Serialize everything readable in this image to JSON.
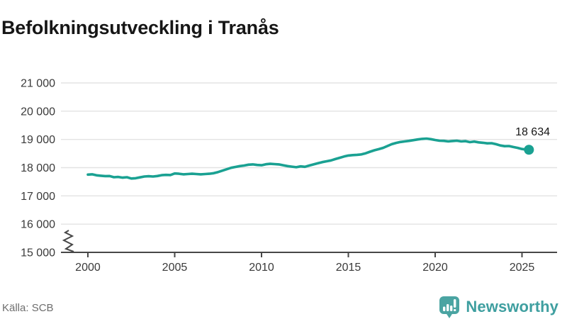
{
  "title": "Befolkningsutveckling i Tranås",
  "source": "Källa: SCB",
  "brand": {
    "name": "Newsworthy",
    "icon": "newsworthy-bubble-barchart-icon",
    "color": "#4aa4a2"
  },
  "chart_data": {
    "type": "line",
    "title": "Befolkningsutveckling i Tranås",
    "xlabel": "",
    "ylabel": "",
    "grid": "horizontal",
    "legend_position": "none",
    "axis_break_bottom_left": true,
    "xlim": [
      1998.45,
      2027.02
    ],
    "ylim": [
      15000,
      21000
    ],
    "x_ticks": [
      {
        "value": 2000,
        "label": "2000"
      },
      {
        "value": 2005,
        "label": "2005"
      },
      {
        "value": 2010,
        "label": "2010"
      },
      {
        "value": 2015,
        "label": "2015"
      },
      {
        "value": 2020,
        "label": "2020"
      },
      {
        "value": 2025,
        "label": "2025"
      }
    ],
    "y_ticks": [
      {
        "value": 15000,
        "label": "15 000"
      },
      {
        "value": 16000,
        "label": "16 000"
      },
      {
        "value": 17000,
        "label": "17 000"
      },
      {
        "value": 18000,
        "label": "18 000"
      },
      {
        "value": 19000,
        "label": "19 000"
      },
      {
        "value": 20000,
        "label": "20 000"
      },
      {
        "value": 21000,
        "label": "21 000"
      }
    ],
    "end_label": "18 634",
    "end_point": {
      "x": 2025.4,
      "y": 18634
    },
    "series": [
      {
        "name": "Befolkning i Tranås",
        "color": "#1aa192",
        "points": [
          [
            2000.0,
            17755
          ],
          [
            2000.25,
            17765
          ],
          [
            2000.5,
            17730
          ],
          [
            2000.75,
            17715
          ],
          [
            2001.0,
            17700
          ],
          [
            2001.25,
            17705
          ],
          [
            2001.5,
            17660
          ],
          [
            2001.75,
            17670
          ],
          [
            2002.0,
            17645
          ],
          [
            2002.25,
            17660
          ],
          [
            2002.5,
            17615
          ],
          [
            2002.75,
            17625
          ],
          [
            2003.0,
            17655
          ],
          [
            2003.25,
            17685
          ],
          [
            2003.5,
            17695
          ],
          [
            2003.75,
            17685
          ],
          [
            2004.0,
            17705
          ],
          [
            2004.25,
            17735
          ],
          [
            2004.5,
            17745
          ],
          [
            2004.75,
            17740
          ],
          [
            2005.0,
            17795
          ],
          [
            2005.25,
            17785
          ],
          [
            2005.5,
            17765
          ],
          [
            2005.75,
            17775
          ],
          [
            2006.0,
            17785
          ],
          [
            2006.25,
            17775
          ],
          [
            2006.5,
            17765
          ],
          [
            2006.75,
            17775
          ],
          [
            2007.0,
            17785
          ],
          [
            2007.25,
            17805
          ],
          [
            2007.5,
            17845
          ],
          [
            2007.75,
            17895
          ],
          [
            2008.0,
            17945
          ],
          [
            2008.25,
            17995
          ],
          [
            2008.5,
            18025
          ],
          [
            2008.75,
            18055
          ],
          [
            2009.0,
            18075
          ],
          [
            2009.25,
            18105
          ],
          [
            2009.5,
            18115
          ],
          [
            2009.75,
            18095
          ],
          [
            2010.0,
            18085
          ],
          [
            2010.25,
            18120
          ],
          [
            2010.5,
            18135
          ],
          [
            2010.75,
            18125
          ],
          [
            2011.0,
            18115
          ],
          [
            2011.25,
            18085
          ],
          [
            2011.5,
            18055
          ],
          [
            2011.75,
            18035
          ],
          [
            2012.0,
            18015
          ],
          [
            2012.25,
            18045
          ],
          [
            2012.5,
            18030
          ],
          [
            2012.75,
            18075
          ],
          [
            2013.0,
            18115
          ],
          [
            2013.25,
            18155
          ],
          [
            2013.5,
            18195
          ],
          [
            2013.75,
            18225
          ],
          [
            2014.0,
            18255
          ],
          [
            2014.25,
            18305
          ],
          [
            2014.5,
            18350
          ],
          [
            2014.75,
            18395
          ],
          [
            2015.0,
            18430
          ],
          [
            2015.25,
            18445
          ],
          [
            2015.5,
            18455
          ],
          [
            2015.75,
            18470
          ],
          [
            2016.0,
            18510
          ],
          [
            2016.25,
            18565
          ],
          [
            2016.5,
            18615
          ],
          [
            2016.75,
            18655
          ],
          [
            2017.0,
            18700
          ],
          [
            2017.25,
            18765
          ],
          [
            2017.5,
            18830
          ],
          [
            2017.75,
            18875
          ],
          [
            2018.0,
            18910
          ],
          [
            2018.25,
            18930
          ],
          [
            2018.5,
            18950
          ],
          [
            2018.75,
            18975
          ],
          [
            2019.0,
            19000
          ],
          [
            2019.25,
            19020
          ],
          [
            2019.5,
            19030
          ],
          [
            2019.75,
            19010
          ],
          [
            2020.0,
            18980
          ],
          [
            2020.25,
            18955
          ],
          [
            2020.5,
            18950
          ],
          [
            2020.75,
            18930
          ],
          [
            2021.0,
            18945
          ],
          [
            2021.25,
            18955
          ],
          [
            2021.5,
            18930
          ],
          [
            2021.75,
            18940
          ],
          [
            2022.0,
            18905
          ],
          [
            2022.25,
            18925
          ],
          [
            2022.5,
            18895
          ],
          [
            2022.75,
            18880
          ],
          [
            2023.0,
            18860
          ],
          [
            2023.25,
            18865
          ],
          [
            2023.5,
            18830
          ],
          [
            2023.75,
            18785
          ],
          [
            2024.0,
            18760
          ],
          [
            2024.25,
            18765
          ],
          [
            2024.5,
            18730
          ],
          [
            2024.75,
            18700
          ],
          [
            2025.0,
            18660
          ],
          [
            2025.2,
            18645
          ],
          [
            2025.4,
            18634
          ]
        ]
      }
    ]
  }
}
